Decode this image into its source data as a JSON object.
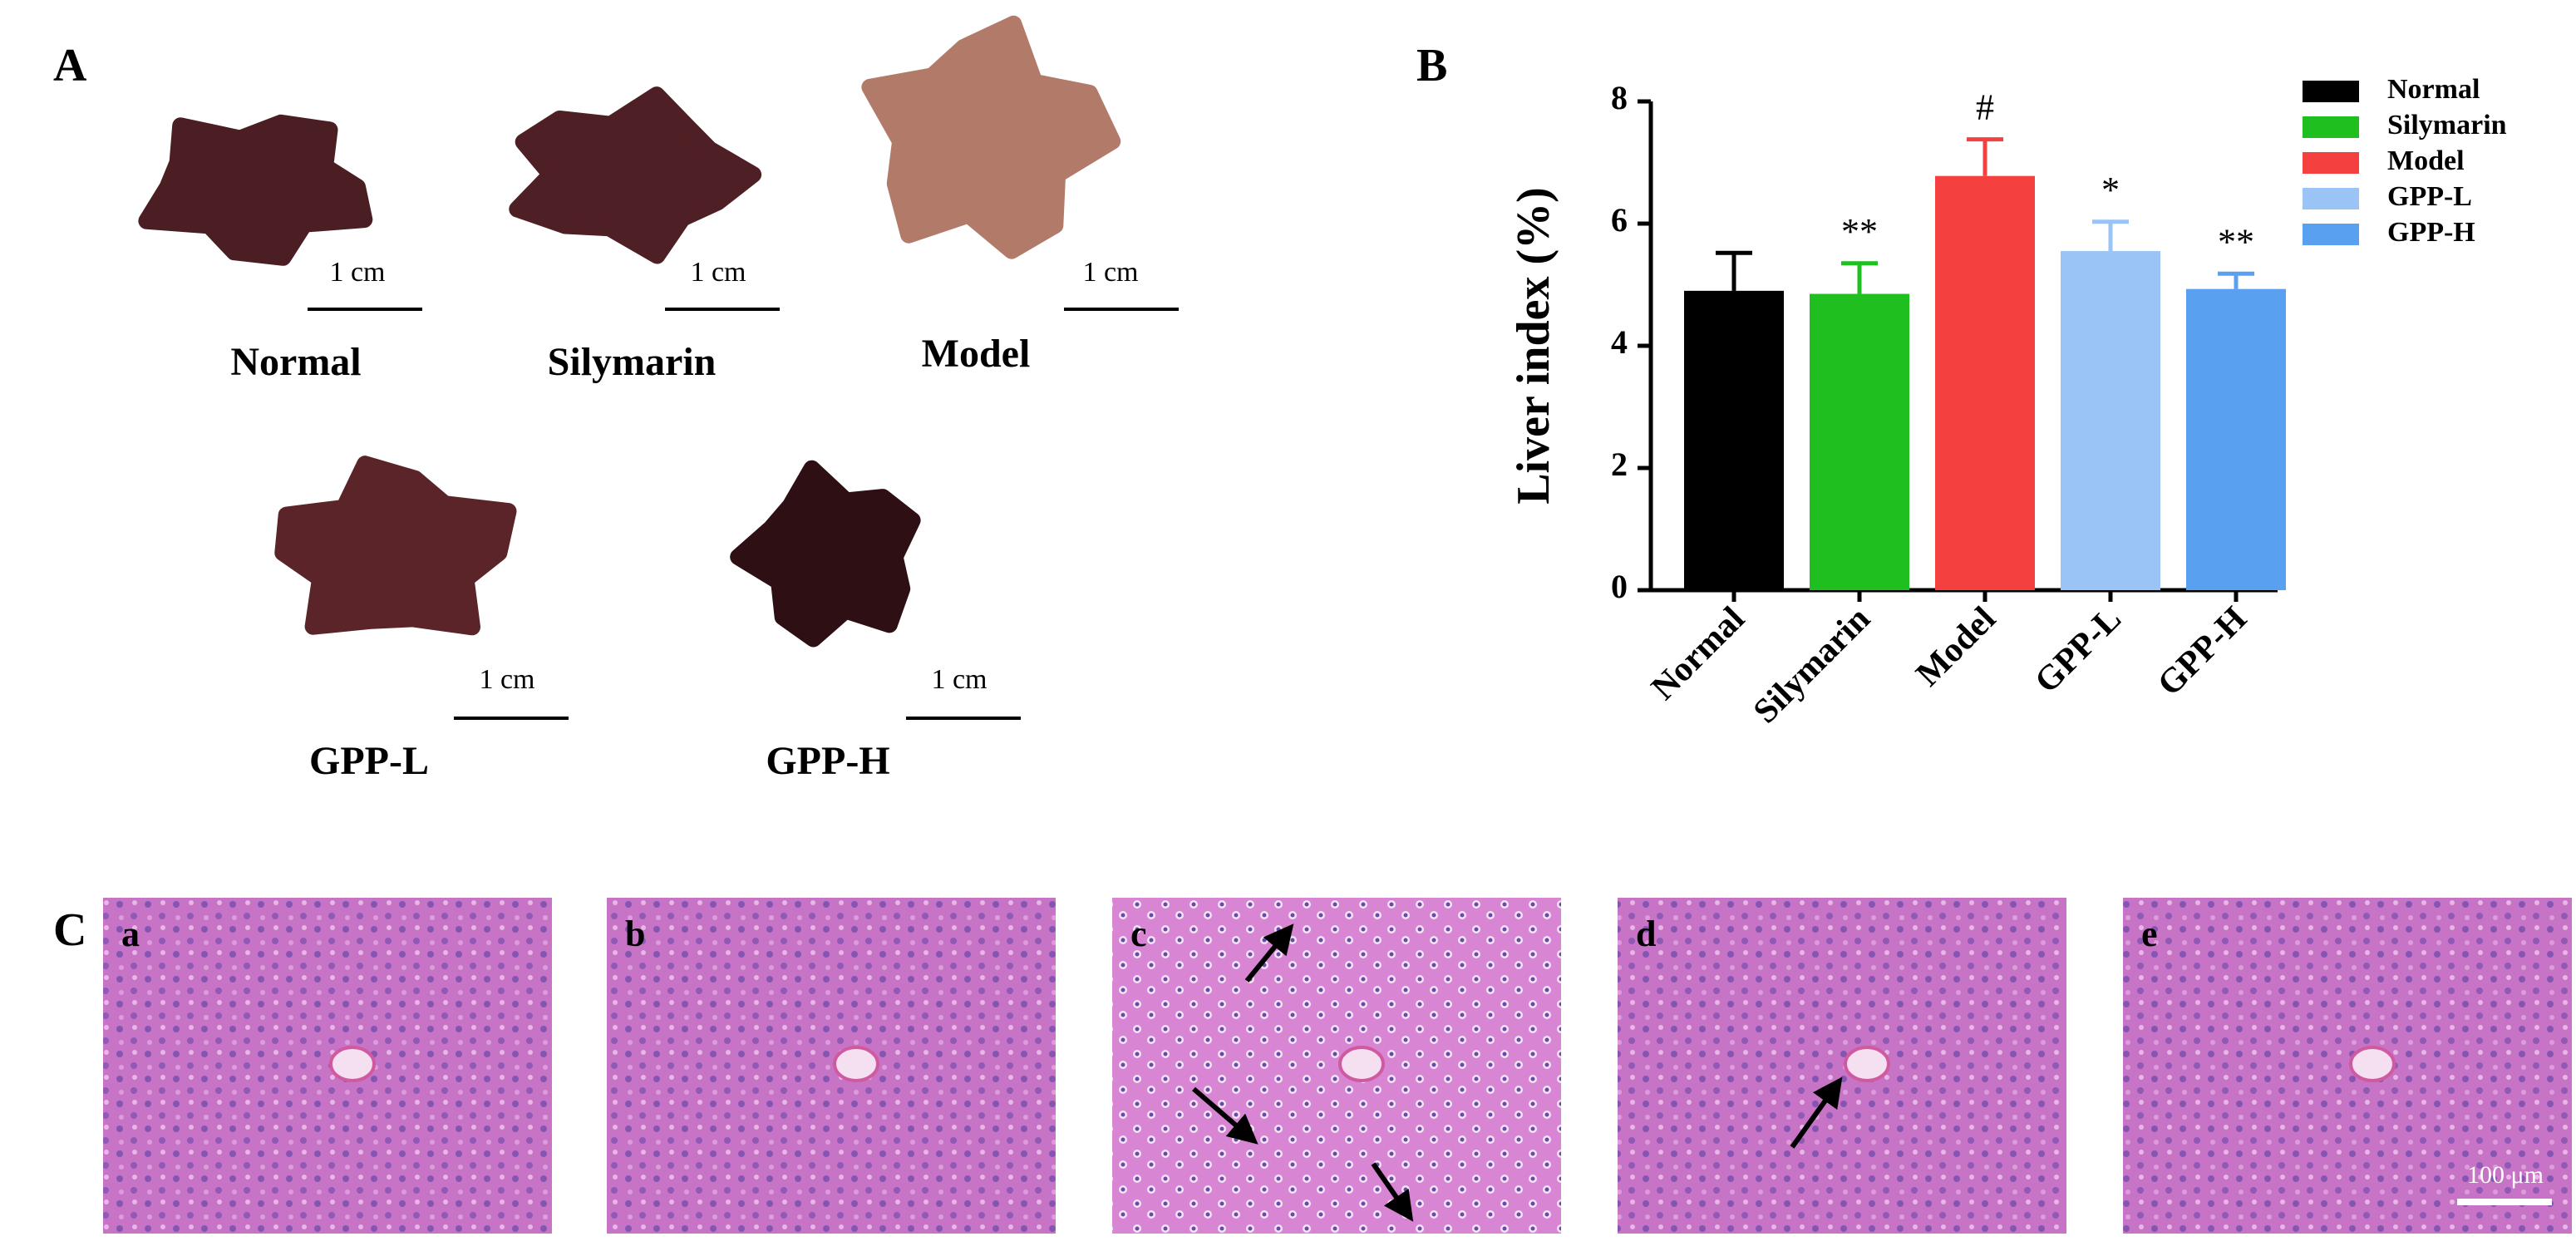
{
  "panel_a": {
    "label": "A",
    "livers": [
      {
        "name": "Normal",
        "scale": "1 cm"
      },
      {
        "name": "Silymarin",
        "scale": "1 cm"
      },
      {
        "name": "Model",
        "scale": "1 cm"
      },
      {
        "name": "GPP-L",
        "scale": "1 cm"
      },
      {
        "name": "GPP-H",
        "scale": "1 cm"
      }
    ]
  },
  "chart_data": {
    "type": "bar",
    "panel_label": "B",
    "y_label": "Liver index (%)",
    "categories": [
      "Normal",
      "Silymarin",
      "Model",
      "GPP-L",
      "GPP-H"
    ],
    "values": [
      4.9,
      4.85,
      6.78,
      5.55,
      4.93
    ],
    "errors": [
      0.62,
      0.5,
      0.6,
      0.48,
      0.25
    ],
    "significance": [
      null,
      "**",
      "#",
      "*",
      "**"
    ],
    "colors": [
      "#000000",
      "#1fbf1f",
      "#f54040",
      "#99c4f5",
      "#5aa0f0"
    ],
    "ylim": [
      0,
      8
    ],
    "yticks": [
      0,
      2,
      4,
      6,
      8
    ],
    "legend": "upper right"
  },
  "panel_c": {
    "label": "C",
    "images": [
      {
        "label": "a"
      },
      {
        "label": "b"
      },
      {
        "label": "c"
      },
      {
        "label": "d"
      },
      {
        "label": "e"
      }
    ],
    "scale_bar": "100 μm"
  }
}
